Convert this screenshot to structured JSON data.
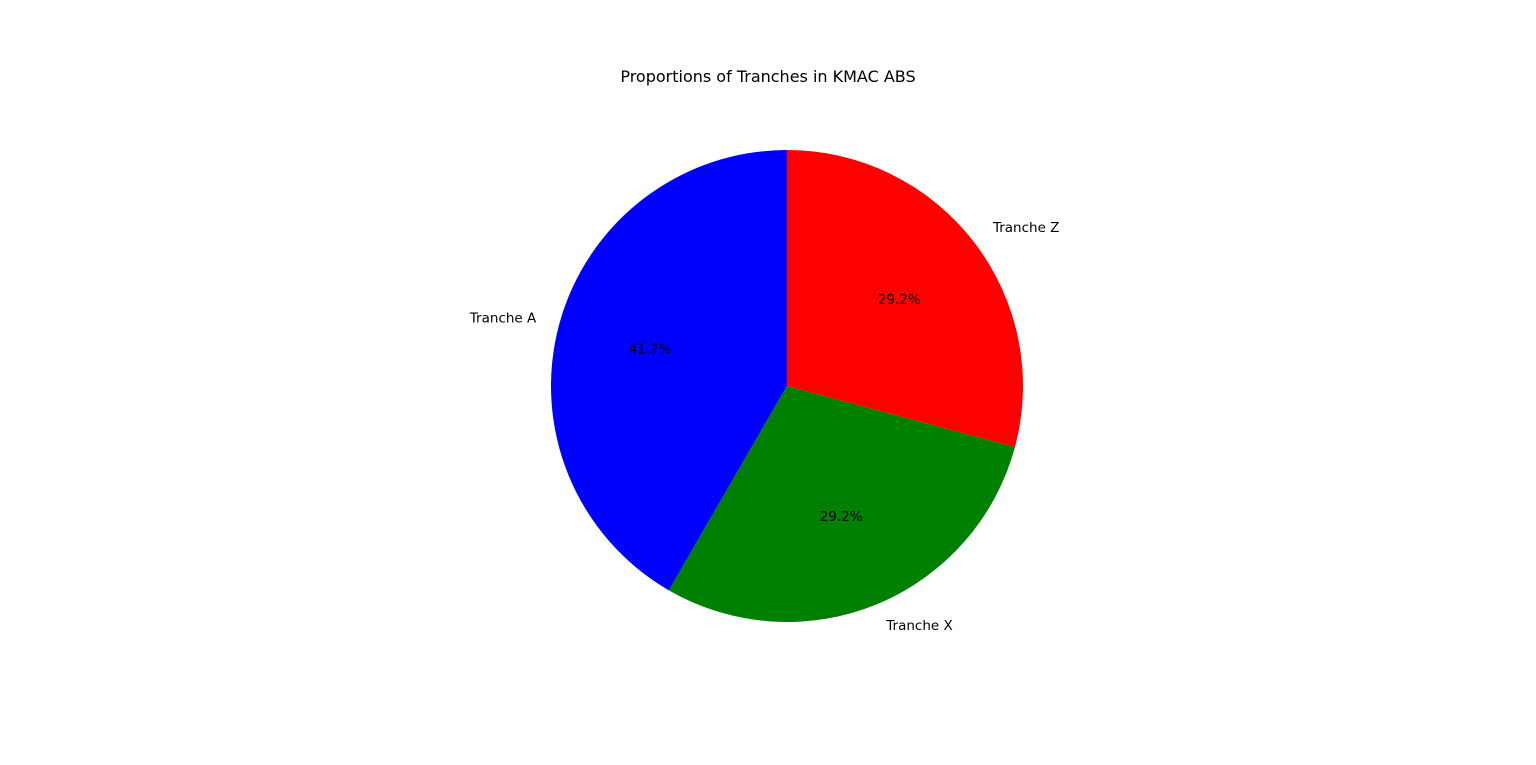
{
  "chart_data": {
    "type": "pie",
    "title": "Proportions of Tranches in KMAC ABS",
    "start_angle_deg": 90,
    "direction": "counterclockwise",
    "slices": [
      {
        "label": "Tranche A",
        "value": 41.7,
        "pct_label": "41.7%",
        "color": "#0000ff"
      },
      {
        "label": "Tranche X",
        "value": 29.2,
        "pct_label": "29.2%",
        "color": "#008000"
      },
      {
        "label": "Tranche Z",
        "value": 29.2,
        "pct_label": "29.2%",
        "color": "#ff0000"
      }
    ]
  }
}
